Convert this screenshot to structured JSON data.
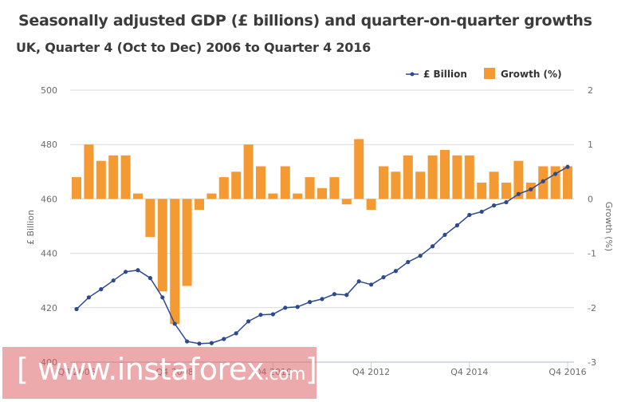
{
  "header": {
    "title": "Seasonally adjusted GDP (£ billions) and quarter-on-quarter growths",
    "subtitle": "UK, Quarter 4 (Oct to Dec) 2006 to Quarter 4 2016"
  },
  "watermark": {
    "open_bracket": "[",
    "main": "www.instaforex",
    "suffix": ".com",
    "close_bracket": "]"
  },
  "colors": {
    "line": "#2e4a8f",
    "bar": "#f39a33",
    "grid": "#d9d9d9"
  },
  "chart_data": {
    "type": "bar+line",
    "title": "Seasonally adjusted GDP (£ billions) and quarter-on-quarter growths",
    "subtitle": "UK, Quarter 4 (Oct to Dec) 2006 to Quarter 4 2016",
    "xlabel": "",
    "ylabel_left": "£ Billion",
    "ylabel_right": "Growth (%)",
    "ylim_left": [
      400,
      500
    ],
    "ylim_right": [
      -3,
      2
    ],
    "yticks_left": [
      "500",
      "480",
      "460",
      "440",
      "420",
      "400"
    ],
    "yticks_right": [
      "2",
      "1",
      "0",
      "-1",
      "-2",
      "-3"
    ],
    "yticks_left_values": [
      500,
      480,
      460,
      440,
      420,
      400
    ],
    "yticks_right_values": [
      2,
      1,
      0,
      -1,
      -2,
      -3
    ],
    "xtick_labels": [
      "Q4 2006",
      "Q4 2008",
      "Q4 2010",
      "Q4 2012",
      "Q4 2014",
      "Q4 2016"
    ],
    "xtick_index": [
      0,
      8,
      16,
      24,
      32,
      40
    ],
    "grid": true,
    "legend_position": "top-right",
    "legend": [
      {
        "name": "£ Billion",
        "kind": "line"
      },
      {
        "name": "Growth (%)",
        "kind": "bar"
      }
    ],
    "categories": [
      "Q4 2006",
      "Q1 2007",
      "Q2 2007",
      "Q3 2007",
      "Q4 2007",
      "Q1 2008",
      "Q2 2008",
      "Q3 2008",
      "Q4 2008",
      "Q1 2009",
      "Q2 2009",
      "Q3 2009",
      "Q4 2009",
      "Q1 2010",
      "Q2 2010",
      "Q3 2010",
      "Q4 2010",
      "Q1 2011",
      "Q2 2011",
      "Q3 2011",
      "Q4 2011",
      "Q1 2012",
      "Q2 2012",
      "Q3 2012",
      "Q4 2012",
      "Q1 2013",
      "Q2 2013",
      "Q3 2013",
      "Q4 2013",
      "Q1 2014",
      "Q2 2014",
      "Q3 2014",
      "Q4 2014",
      "Q1 2015",
      "Q2 2015",
      "Q3 2015",
      "Q4 2015",
      "Q1 2016",
      "Q2 2016",
      "Q3 2016",
      "Q4 2016"
    ],
    "series": [
      {
        "name": "£ Billion",
        "type": "line",
        "axis": "left",
        "values": [
          419.5,
          423.8,
          426.8,
          430.0,
          433.2,
          433.8,
          430.9,
          423.8,
          414.1,
          407.6,
          406.8,
          407.0,
          408.5,
          410.6,
          415.0,
          417.4,
          417.6,
          420.0,
          420.3,
          422.1,
          423.2,
          425.0,
          424.7,
          429.7,
          428.5,
          431.2,
          433.5,
          436.8,
          439.1,
          442.6,
          446.8,
          450.3,
          454.1,
          455.3,
          457.6,
          458.8,
          461.8,
          463.5,
          466.5,
          469.2,
          471.8
        ]
      },
      {
        "name": "Growth (%)",
        "type": "bar",
        "axis": "right",
        "values": [
          0.4,
          1.0,
          0.7,
          0.8,
          0.8,
          0.1,
          -0.7,
          -1.7,
          -2.3,
          -1.6,
          -0.2,
          0.1,
          0.4,
          0.5,
          1.0,
          0.6,
          0.1,
          0.6,
          0.1,
          0.4,
          0.2,
          0.4,
          -0.1,
          1.1,
          -0.2,
          0.6,
          0.5,
          0.8,
          0.5,
          0.8,
          0.9,
          0.8,
          0.8,
          0.3,
          0.5,
          0.3,
          0.7,
          0.3,
          0.6,
          0.6,
          0.6
        ]
      }
    ]
  }
}
